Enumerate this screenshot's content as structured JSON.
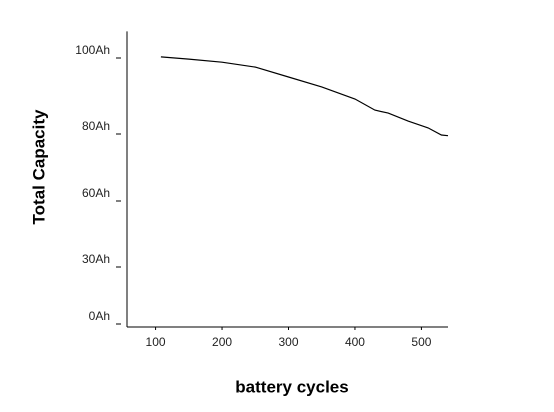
{
  "chart_data": {
    "type": "line",
    "xlabel": "battery cycles",
    "ylabel": "Total Capacity",
    "x": [
      108,
      150,
      200,
      250,
      300,
      350,
      400,
      430,
      450,
      480,
      510,
      530,
      540
    ],
    "series": [
      {
        "name": null,
        "color": "#000000",
        "values": [
          100.3,
          99.7,
          98.9,
          97.6,
          95.0,
          92.4,
          89.2,
          86.3,
          85.5,
          83.4,
          81.6,
          79.7,
          79.5
        ]
      }
    ],
    "xlim": [
      57,
      540
    ],
    "xticks": [
      100,
      200,
      300,
      400,
      500
    ],
    "ylim": [
      0,
      107
    ],
    "yticks": [
      {
        "value": 0,
        "label": "0Ah"
      },
      {
        "value": 30,
        "label": "30Ah"
      },
      {
        "value": 60,
        "label": "60Ah"
      },
      {
        "value": 80,
        "label": "80Ah"
      },
      {
        "value": 100,
        "label": "100Ah"
      }
    ],
    "grid": false
  }
}
